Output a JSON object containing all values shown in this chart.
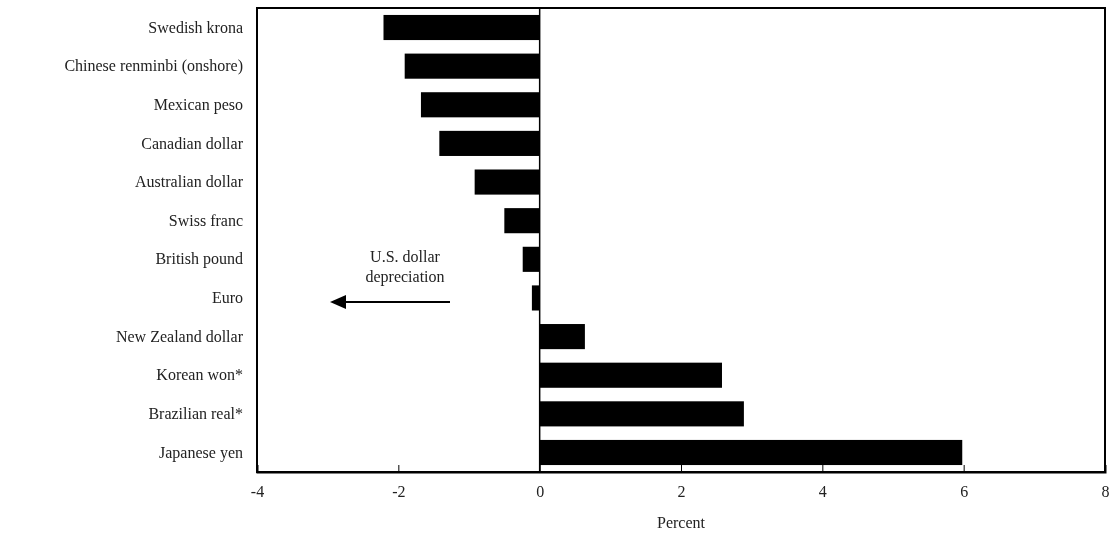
{
  "chart_data": {
    "type": "bar",
    "orientation": "horizontal",
    "xlabel": "Percent",
    "categories": [
      "Swedish krona",
      "Chinese renminbi (onshore)",
      "Mexican peso",
      "Canadian dollar",
      "Australian dollar",
      "Swiss franc",
      "British pound",
      "Euro",
      "New Zealand dollar",
      "Korean won*",
      "Brazilian real*",
      "Japanese yen"
    ],
    "values": [
      -2.21,
      -1.91,
      -1.68,
      -1.42,
      -0.92,
      -0.5,
      -0.24,
      -0.11,
      0.64,
      2.58,
      2.89,
      5.98
    ],
    "color": "#000000",
    "xlim": [
      -4,
      8
    ],
    "xticks": [
      -4,
      -2,
      0,
      2,
      4,
      6,
      8
    ],
    "annotations": [
      "U.S. dollar\ndepreciation"
    ]
  }
}
